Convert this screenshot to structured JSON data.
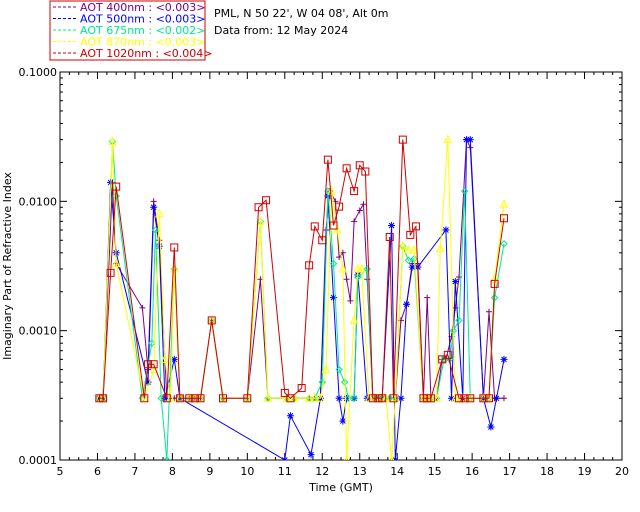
{
  "header": {
    "site": "PML, N 50 22', W 04 08', Alt 0m",
    "date": "Data from: 12 May 2024"
  },
  "chart_data": {
    "type": "line",
    "xlabel": "Time (GMT)",
    "ylabel": "Imaginary Part of Refractive Index",
    "xlim": [
      5,
      20
    ],
    "ylim": [
      0.0001,
      0.1
    ],
    "yscale": "log",
    "x_ticks": [
      "5",
      "6",
      "7",
      "8",
      "9",
      "10",
      "11",
      "12",
      "13",
      "14",
      "15",
      "16",
      "17",
      "18",
      "19",
      "20"
    ],
    "y_ticks": [
      "0.0001",
      "0.0010",
      "0.0100",
      "0.1000"
    ],
    "grid": false,
    "legend_position": "top-left, above plot",
    "series": [
      {
        "name": "AOT  400nm : <0.003>",
        "color": "#800080",
        "marker": "plus",
        "points": [
          [
            6.05,
            0.0003
          ],
          [
            6.15,
            0.0003
          ],
          [
            6.4,
            0.014
          ],
          [
            6.5,
            0.0033
          ],
          [
            7.2,
            0.0015
          ],
          [
            7.35,
            0.0005
          ],
          [
            7.5,
            0.01
          ],
          [
            7.65,
            0.005
          ],
          [
            7.85,
            0.0003
          ],
          [
            8.05,
            0.0003
          ],
          [
            8.2,
            0.0003
          ],
          [
            8.45,
            0.0003
          ],
          [
            8.6,
            0.0003
          ],
          [
            8.75,
            0.0003
          ],
          [
            9.05,
            0.0012
          ],
          [
            9.35,
            0.0003
          ],
          [
            10.0,
            0.0003
          ],
          [
            10.35,
            0.0025
          ],
          [
            10.55,
            0.0003
          ],
          [
            11.05,
            0.0003
          ],
          [
            11.25,
            0.0003
          ],
          [
            11.65,
            0.0003
          ],
          [
            11.8,
            0.0003
          ],
          [
            11.95,
            0.0003
          ],
          [
            12.1,
            0.006
          ],
          [
            12.2,
            0.012
          ],
          [
            12.35,
            0.01
          ],
          [
            12.45,
            0.0037
          ],
          [
            12.55,
            0.004
          ],
          [
            12.65,
            0.0025
          ],
          [
            12.75,
            0.0017
          ],
          [
            12.85,
            0.007
          ],
          [
            13.0,
            0.0085
          ],
          [
            13.1,
            0.0095
          ],
          [
            13.2,
            0.0025
          ],
          [
            13.35,
            0.0003
          ],
          [
            13.5,
            0.0003
          ],
          [
            13.6,
            0.0003
          ],
          [
            13.8,
            0.0003
          ],
          [
            13.95,
            0.0003
          ],
          [
            14.1,
            0.0012
          ],
          [
            14.25,
            0.0016
          ],
          [
            14.4,
            0.0033
          ],
          [
            14.55,
            0.0033
          ],
          [
            14.7,
            0.0003
          ],
          [
            14.8,
            0.0018
          ],
          [
            14.9,
            0.0003
          ],
          [
            15.05,
            0.0003
          ],
          [
            15.2,
            0.0006
          ],
          [
            15.3,
            0.0006
          ],
          [
            15.45,
            0.0009
          ],
          [
            15.55,
            0.0015
          ],
          [
            15.65,
            0.0026
          ],
          [
            15.85,
            0.03
          ],
          [
            15.95,
            0.026
          ],
          [
            16.3,
            0.0003
          ],
          [
            16.45,
            0.0014
          ],
          [
            16.6,
            0.0003
          ],
          [
            16.85,
            0.0003
          ]
        ]
      },
      {
        "name": "AOT  500nm : <0.003>",
        "color": "#0000ff",
        "marker": "star",
        "points": [
          [
            6.05,
            0.0003
          ],
          [
            6.15,
            0.0003
          ],
          [
            6.35,
            0.014
          ],
          [
            6.5,
            0.004
          ],
          [
            7.35,
            0.0004
          ],
          [
            7.5,
            0.009
          ],
          [
            7.65,
            0.0045
          ],
          [
            7.8,
            0.0003
          ],
          [
            8.05,
            0.0006
          ],
          [
            8.2,
            0.0003
          ],
          [
            11.0,
            0.0001
          ],
          [
            11.15,
            0.00022
          ],
          [
            11.7,
            0.00011
          ],
          [
            11.95,
            0.0003
          ],
          [
            12.15,
            0.011
          ],
          [
            12.3,
            0.0018
          ],
          [
            12.45,
            0.0003
          ],
          [
            12.55,
            0.0002
          ],
          [
            12.65,
            0.0003
          ],
          [
            12.85,
            0.0003
          ],
          [
            12.95,
            0.0027
          ],
          [
            13.2,
            0.0003
          ],
          [
            13.45,
            0.0003
          ],
          [
            13.6,
            0.0003
          ],
          [
            13.85,
            0.0065
          ],
          [
            13.95,
            0.0001
          ],
          [
            14.1,
            0.0003
          ],
          [
            14.25,
            0.0016
          ],
          [
            14.4,
            0.0031
          ],
          [
            14.55,
            0.0031
          ],
          [
            15.3,
            0.006
          ],
          [
            15.45,
            0.0003
          ],
          [
            15.55,
            0.0024
          ],
          [
            15.75,
            0.0003
          ],
          [
            15.85,
            0.03
          ],
          [
            15.95,
            0.03
          ],
          [
            16.3,
            0.0003
          ],
          [
            16.5,
            0.00018
          ],
          [
            16.65,
            0.0003
          ],
          [
            16.85,
            0.0006
          ]
        ]
      },
      {
        "name": "AOT  675nm : <0.002>",
        "color": "#00e890",
        "marker": "diamond",
        "points": [
          [
            6.05,
            0.0003
          ],
          [
            6.15,
            0.0003
          ],
          [
            6.4,
            0.029
          ],
          [
            6.5,
            0.011
          ],
          [
            7.2,
            0.0003
          ],
          [
            7.45,
            0.0008
          ],
          [
            7.55,
            0.006
          ],
          [
            7.7,
            0.0003
          ],
          [
            7.85,
            0.0001
          ],
          [
            8.05,
            0.003
          ],
          [
            8.2,
            0.0003
          ],
          [
            8.45,
            0.0003
          ],
          [
            8.6,
            0.0003
          ],
          [
            8.75,
            0.0003
          ],
          [
            9.05,
            0.0012
          ],
          [
            9.35,
            0.0003
          ],
          [
            10.0,
            0.0003
          ],
          [
            10.35,
            0.007
          ],
          [
            10.55,
            0.0003
          ],
          [
            11.05,
            0.0003
          ],
          [
            11.25,
            0.0003
          ],
          [
            11.65,
            0.0003
          ],
          [
            11.8,
            0.0003
          ],
          [
            12.0,
            0.0004
          ],
          [
            12.15,
            0.012
          ],
          [
            12.3,
            0.0033
          ],
          [
            12.45,
            0.0005
          ],
          [
            12.6,
            0.0004
          ],
          [
            12.7,
            0.0003
          ],
          [
            12.85,
            0.0003
          ],
          [
            12.95,
            0.0026
          ],
          [
            13.2,
            0.003
          ],
          [
            13.35,
            0.0003
          ],
          [
            13.5,
            0.0003
          ],
          [
            13.6,
            0.0003
          ],
          [
            13.8,
            0.0003
          ],
          [
            13.95,
            0.0003
          ],
          [
            14.15,
            0.0045
          ],
          [
            14.3,
            0.0035
          ],
          [
            14.45,
            0.0036
          ],
          [
            14.7,
            0.0003
          ],
          [
            14.8,
            0.0003
          ],
          [
            14.9,
            0.0003
          ],
          [
            15.05,
            0.0003
          ],
          [
            15.25,
            0.0006
          ],
          [
            15.4,
            0.0006
          ],
          [
            15.5,
            0.001
          ],
          [
            15.65,
            0.0012
          ],
          [
            15.8,
            0.012
          ],
          [
            15.95,
            0.0003
          ],
          [
            16.3,
            0.0003
          ],
          [
            16.45,
            0.0003
          ],
          [
            16.6,
            0.0018
          ],
          [
            16.85,
            0.0047
          ]
        ]
      },
      {
        "name": "AOT  870nm : <0.003>",
        "color": "#ffff00",
        "marker": "triangle",
        "points": [
          [
            6.05,
            0.0003
          ],
          [
            6.15,
            0.0003
          ],
          [
            6.4,
            0.029
          ],
          [
            6.5,
            0.0033
          ],
          [
            7.25,
            0.0003
          ],
          [
            7.5,
            0.0005
          ],
          [
            7.65,
            0.008
          ],
          [
            7.8,
            0.0006
          ],
          [
            7.95,
            0.0003
          ],
          [
            8.05,
            0.003
          ],
          [
            8.2,
            0.0003
          ],
          [
            8.45,
            0.0003
          ],
          [
            8.6,
            0.0003
          ],
          [
            8.75,
            0.0003
          ],
          [
            9.05,
            0.0012
          ],
          [
            9.35,
            0.0003
          ],
          [
            10.0,
            0.0003
          ],
          [
            10.35,
            0.007
          ],
          [
            10.55,
            0.0003
          ],
          [
            11.05,
            0.0003
          ],
          [
            11.25,
            0.0003
          ],
          [
            11.65,
            0.0003
          ],
          [
            11.8,
            0.0003
          ],
          [
            11.95,
            0.0003
          ],
          [
            12.1,
            0.0005
          ],
          [
            12.25,
            0.012
          ],
          [
            12.4,
            0.006
          ],
          [
            12.55,
            0.003
          ],
          [
            12.65,
            0.0001
          ],
          [
            12.85,
            0.0012
          ],
          [
            12.95,
            0.003
          ],
          [
            13.05,
            0.003
          ],
          [
            13.25,
            0.0003
          ],
          [
            13.4,
            0.0003
          ],
          [
            13.55,
            0.0003
          ],
          [
            13.7,
            0.0003
          ],
          [
            13.85,
            0.0001
          ],
          [
            13.95,
            0.0003
          ],
          [
            14.15,
            0.0045
          ],
          [
            14.3,
            0.0042
          ],
          [
            14.45,
            0.0042
          ],
          [
            14.7,
            0.0003
          ],
          [
            14.8,
            0.0003
          ],
          [
            14.9,
            0.0003
          ],
          [
            15.05,
            0.0003
          ],
          [
            15.15,
            0.0043
          ],
          [
            15.35,
            0.03
          ],
          [
            15.55,
            0.0003
          ],
          [
            15.75,
            0.0003
          ],
          [
            15.95,
            0.0003
          ],
          [
            16.3,
            0.0003
          ],
          [
            16.45,
            0.0003
          ],
          [
            16.6,
            0.0025
          ],
          [
            16.85,
            0.0095
          ]
        ]
      },
      {
        "name": "AOT 1020nm : <0.004>",
        "color": "#d00000",
        "marker": "square",
        "points": [
          [
            6.05,
            0.0003
          ],
          [
            6.15,
            0.0003
          ],
          [
            6.35,
            0.0028
          ],
          [
            6.5,
            0.013
          ],
          [
            7.25,
            0.0003
          ],
          [
            7.35,
            0.00055
          ],
          [
            7.5,
            0.00055
          ],
          [
            7.85,
            0.0003
          ],
          [
            8.05,
            0.0044
          ],
          [
            8.2,
            0.0003
          ],
          [
            8.45,
            0.0003
          ],
          [
            8.6,
            0.0003
          ],
          [
            8.75,
            0.0003
          ],
          [
            9.05,
            0.0012
          ],
          [
            9.35,
            0.0003
          ],
          [
            10.0,
            0.0003
          ],
          [
            10.3,
            0.009
          ],
          [
            10.5,
            0.0102
          ],
          [
            11.0,
            0.00033
          ],
          [
            11.15,
            0.0003
          ],
          [
            11.45,
            0.00036
          ],
          [
            11.65,
            0.0032
          ],
          [
            11.8,
            0.0064
          ],
          [
            12.0,
            0.005
          ],
          [
            12.15,
            0.021
          ],
          [
            12.3,
            0.0065
          ],
          [
            12.45,
            0.0091
          ],
          [
            12.65,
            0.018
          ],
          [
            12.85,
            0.012
          ],
          [
            13.0,
            0.019
          ],
          [
            13.15,
            0.017
          ],
          [
            13.35,
            0.0003
          ],
          [
            13.5,
            0.0003
          ],
          [
            13.6,
            0.0003
          ],
          [
            13.8,
            0.0053
          ],
          [
            13.9,
            0.0003
          ],
          [
            14.15,
            0.03
          ],
          [
            14.35,
            0.0055
          ],
          [
            14.5,
            0.0064
          ],
          [
            14.7,
            0.0003
          ],
          [
            14.8,
            0.0003
          ],
          [
            14.9,
            0.0003
          ],
          [
            15.2,
            0.0006
          ],
          [
            15.35,
            0.00065
          ],
          [
            15.65,
            0.0003
          ],
          [
            15.8,
            0.0003
          ],
          [
            15.95,
            0.0003
          ],
          [
            16.3,
            0.0003
          ],
          [
            16.45,
            0.0003
          ],
          [
            16.6,
            0.0023
          ],
          [
            16.85,
            0.0074
          ]
        ]
      }
    ]
  }
}
